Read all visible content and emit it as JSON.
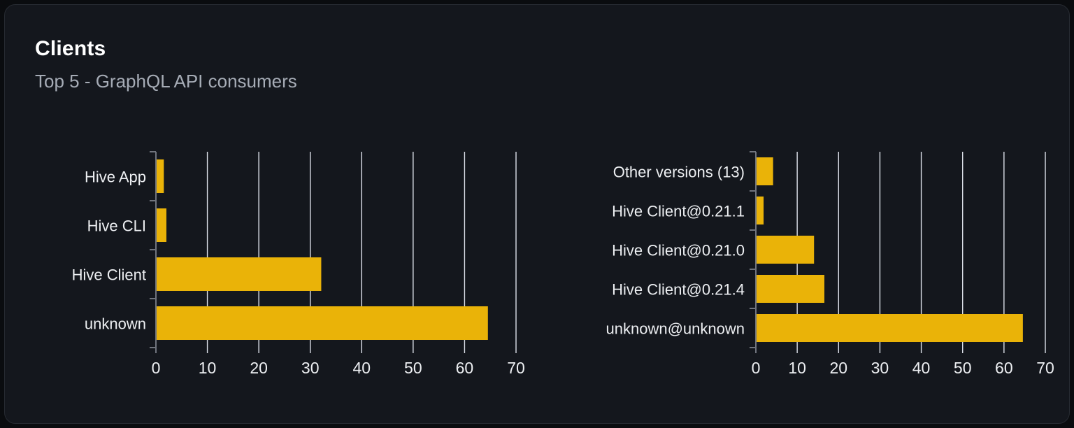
{
  "card": {
    "title": "Clients",
    "subtitle": "Top 5 - GraphQL API consumers"
  },
  "colors": {
    "bar": "#eab308",
    "grid": "#dde1ea",
    "axis": "#70747d",
    "tick_label": "#edeff2",
    "category_label": "#edeff2",
    "card_bg": "#14171d",
    "page_bg": "#0a0c0f",
    "title": "#ffffff",
    "subtitle": "#a6acb6"
  },
  "chart_data": [
    {
      "type": "bar",
      "name": "clients-by-name",
      "orientation": "horizontal",
      "categories": [
        "Hive App",
        "Hive CLI",
        "Hive Client",
        "unknown"
      ],
      "values": [
        1.4,
        1.9,
        32,
        64.4
      ],
      "xlabel": "",
      "ylabel": "",
      "xlim": [
        0,
        70
      ],
      "xticks": [
        0,
        10,
        20,
        30,
        40,
        50,
        60,
        70
      ],
      "grid": true,
      "legend": false
    },
    {
      "type": "bar",
      "name": "clients-by-version",
      "orientation": "horizontal",
      "categories": [
        "Other versions (13)",
        "Hive Client@0.21.1",
        "Hive Client@0.21.0",
        "Hive Client@0.21.4",
        "unknown@unknown"
      ],
      "values": [
        4,
        1.7,
        13.9,
        16.4,
        64.4
      ],
      "xlabel": "",
      "ylabel": "",
      "xlim": [
        0,
        70
      ],
      "xticks": [
        0,
        10,
        20,
        30,
        40,
        50,
        60,
        70
      ],
      "grid": true,
      "legend": false
    }
  ]
}
